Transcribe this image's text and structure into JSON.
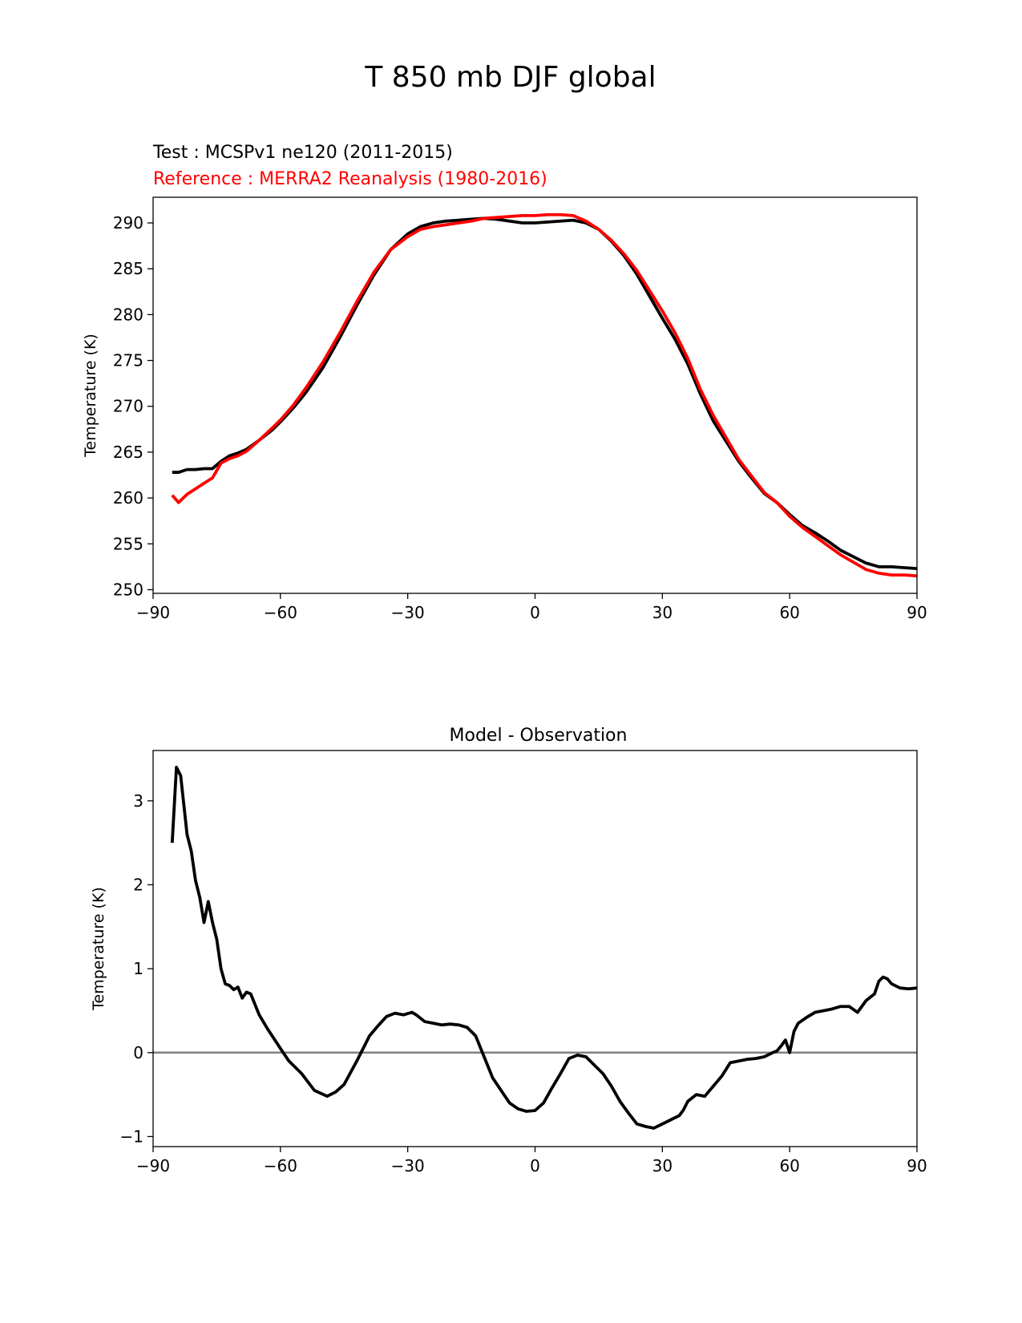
{
  "figure": {
    "title": "T 850 mb DJF global"
  },
  "chart_data": [
    {
      "type": "line",
      "test_label": "Test : MCSPv1 ne120 (2011-2015)",
      "reference_label": "Reference : MERRA2 Reanalysis (1980-2016)",
      "xlabel": "",
      "ylabel": "Temperature (K)",
      "xlim": [
        -90,
        90
      ],
      "ylim": [
        249.6,
        292.8
      ],
      "xticks": [
        -90,
        -60,
        -30,
        0,
        30,
        60,
        90
      ],
      "xtick_labels": [
        "−90",
        "−60",
        "−30",
        "0",
        "30",
        "60",
        "90"
      ],
      "yticks": [
        250,
        255,
        260,
        265,
        270,
        275,
        280,
        285,
        290
      ],
      "ytick_labels": [
        "250",
        "255",
        "260",
        "265",
        "270",
        "275",
        "280",
        "285",
        "290"
      ],
      "grid": false,
      "series": [
        {
          "color": "#000000",
          "x": [
            -85.5,
            -84,
            -82,
            -80,
            -78,
            -76,
            -74,
            -72,
            -70,
            -68,
            -65,
            -62,
            -60,
            -57,
            -54,
            -50,
            -46,
            -42,
            -38,
            -34,
            -30,
            -27,
            -24,
            -21,
            -18,
            -15,
            -12,
            -9,
            -6,
            -3,
            0,
            3,
            6,
            9,
            12,
            15,
            18,
            21,
            24,
            27,
            30,
            33,
            36,
            39,
            42,
            45,
            48,
            51,
            54,
            57,
            60,
            63,
            66,
            69,
            72,
            75,
            78,
            81,
            84,
            87,
            90
          ],
          "values": [
            262.8,
            262.8,
            263.1,
            263.1,
            263.2,
            263.2,
            264.0,
            264.6,
            264.9,
            265.3,
            266.3,
            267.4,
            268.3,
            269.8,
            271.5,
            274.2,
            277.5,
            281.0,
            284.3,
            287.1,
            288.8,
            289.6,
            290.0,
            290.2,
            290.3,
            290.4,
            290.5,
            290.4,
            290.2,
            290.0,
            290.0,
            290.1,
            290.2,
            290.3,
            290.0,
            289.3,
            288.0,
            286.4,
            284.4,
            282.0,
            279.6,
            277.3,
            274.6,
            271.3,
            268.4,
            266.2,
            264.0,
            262.2,
            260.5,
            259.5,
            258.2,
            257.0,
            256.2,
            255.3,
            254.3,
            253.6,
            252.9,
            252.5,
            252.5,
            252.4,
            252.3
          ]
        },
        {
          "color": "#ff0000",
          "x": [
            -85.5,
            -84,
            -82,
            -80,
            -78,
            -76,
            -74,
            -72,
            -70,
            -68,
            -65,
            -62,
            -60,
            -57,
            -54,
            -50,
            -46,
            -42,
            -38,
            -34,
            -30,
            -27,
            -24,
            -21,
            -18,
            -15,
            -12,
            -9,
            -6,
            -3,
            0,
            3,
            6,
            9,
            12,
            15,
            18,
            21,
            24,
            27,
            30,
            33,
            36,
            39,
            42,
            45,
            48,
            51,
            54,
            57,
            60,
            63,
            66,
            69,
            72,
            75,
            78,
            81,
            84,
            87,
            90
          ],
          "values": [
            260.3,
            259.5,
            260.4,
            261.0,
            261.6,
            262.2,
            263.8,
            264.3,
            264.6,
            265.1,
            266.3,
            267.6,
            268.5,
            270.1,
            272.0,
            274.8,
            278.0,
            281.4,
            284.6,
            287.1,
            288.5,
            289.3,
            289.6,
            289.8,
            290.0,
            290.2,
            290.5,
            290.6,
            290.7,
            290.8,
            290.8,
            290.9,
            290.9,
            290.8,
            290.2,
            289.3,
            288.1,
            286.6,
            284.8,
            282.6,
            280.4,
            278.0,
            275.2,
            271.8,
            269.0,
            266.6,
            264.2,
            262.4,
            260.6,
            259.5,
            258.0,
            256.8,
            255.8,
            254.8,
            253.8,
            253.0,
            252.2,
            251.8,
            251.6,
            251.6,
            251.5
          ]
        }
      ]
    },
    {
      "type": "line",
      "title": "Model - Observation",
      "xlabel": "",
      "ylabel": "Temperature (K)",
      "xlim": [
        -90,
        90
      ],
      "ylim": [
        -1.12,
        3.6
      ],
      "xticks": [
        -90,
        -60,
        -30,
        0,
        30,
        60,
        90
      ],
      "xtick_labels": [
        "−90",
        "−60",
        "−30",
        "0",
        "30",
        "60",
        "90"
      ],
      "yticks": [
        -1,
        0,
        1,
        2,
        3
      ],
      "ytick_labels": [
        "−1",
        "0",
        "1",
        "2",
        "3"
      ],
      "grid": false,
      "zero_line": {
        "value": 0,
        "color": "#808080"
      },
      "series": [
        {
          "color": "#000000",
          "x": [
            -85.5,
            -84.5,
            -83.5,
            -82,
            -81,
            -80,
            -79,
            -78,
            -77,
            -76,
            -75,
            -74,
            -73,
            -72,
            -71,
            -70,
            -69,
            -68,
            -67,
            -65,
            -63,
            -60,
            -58,
            -55,
            -52,
            -49,
            -47,
            -45,
            -42,
            -39,
            -37,
            -35,
            -33,
            -31,
            -29,
            -28,
            -26,
            -24,
            -22,
            -20,
            -18,
            -16,
            -14,
            -12,
            -10,
            -8,
            -6,
            -4,
            -2,
            0,
            2,
            4,
            6,
            8,
            10,
            12,
            14,
            16,
            18,
            20,
            22,
            24,
            26,
            28,
            30,
            32,
            34,
            35,
            36,
            38,
            40,
            42,
            44,
            46,
            48,
            50,
            52,
            54,
            56,
            57,
            58,
            59,
            60,
            61,
            62,
            64,
            66,
            68,
            70,
            72,
            74,
            76,
            78,
            80,
            81,
            82,
            83,
            84,
            86,
            88,
            90
          ],
          "values": [
            2.5,
            3.4,
            3.3,
            2.6,
            2.4,
            2.05,
            1.85,
            1.55,
            1.8,
            1.55,
            1.35,
            1.0,
            0.82,
            0.8,
            0.75,
            0.78,
            0.65,
            0.72,
            0.7,
            0.45,
            0.28,
            0.05,
            -0.1,
            -0.25,
            -0.45,
            -0.52,
            -0.47,
            -0.38,
            -0.1,
            0.2,
            0.32,
            0.43,
            0.47,
            0.45,
            0.48,
            0.45,
            0.37,
            0.35,
            0.33,
            0.34,
            0.33,
            0.3,
            0.2,
            -0.05,
            -0.3,
            -0.45,
            -0.6,
            -0.67,
            -0.7,
            -0.69,
            -0.6,
            -0.42,
            -0.25,
            -0.07,
            -0.03,
            -0.05,
            -0.15,
            -0.25,
            -0.4,
            -0.58,
            -0.72,
            -0.85,
            -0.88,
            -0.9,
            -0.85,
            -0.8,
            -0.75,
            -0.68,
            -0.58,
            -0.5,
            -0.52,
            -0.4,
            -0.28,
            -0.12,
            -0.1,
            -0.08,
            -0.07,
            -0.05,
            0.0,
            0.02,
            0.08,
            0.15,
            0.0,
            0.25,
            0.35,
            0.42,
            0.48,
            0.5,
            0.52,
            0.55,
            0.55,
            0.48,
            0.62,
            0.7,
            0.85,
            0.9,
            0.88,
            0.82,
            0.77,
            0.76,
            0.77
          ]
        }
      ]
    }
  ]
}
